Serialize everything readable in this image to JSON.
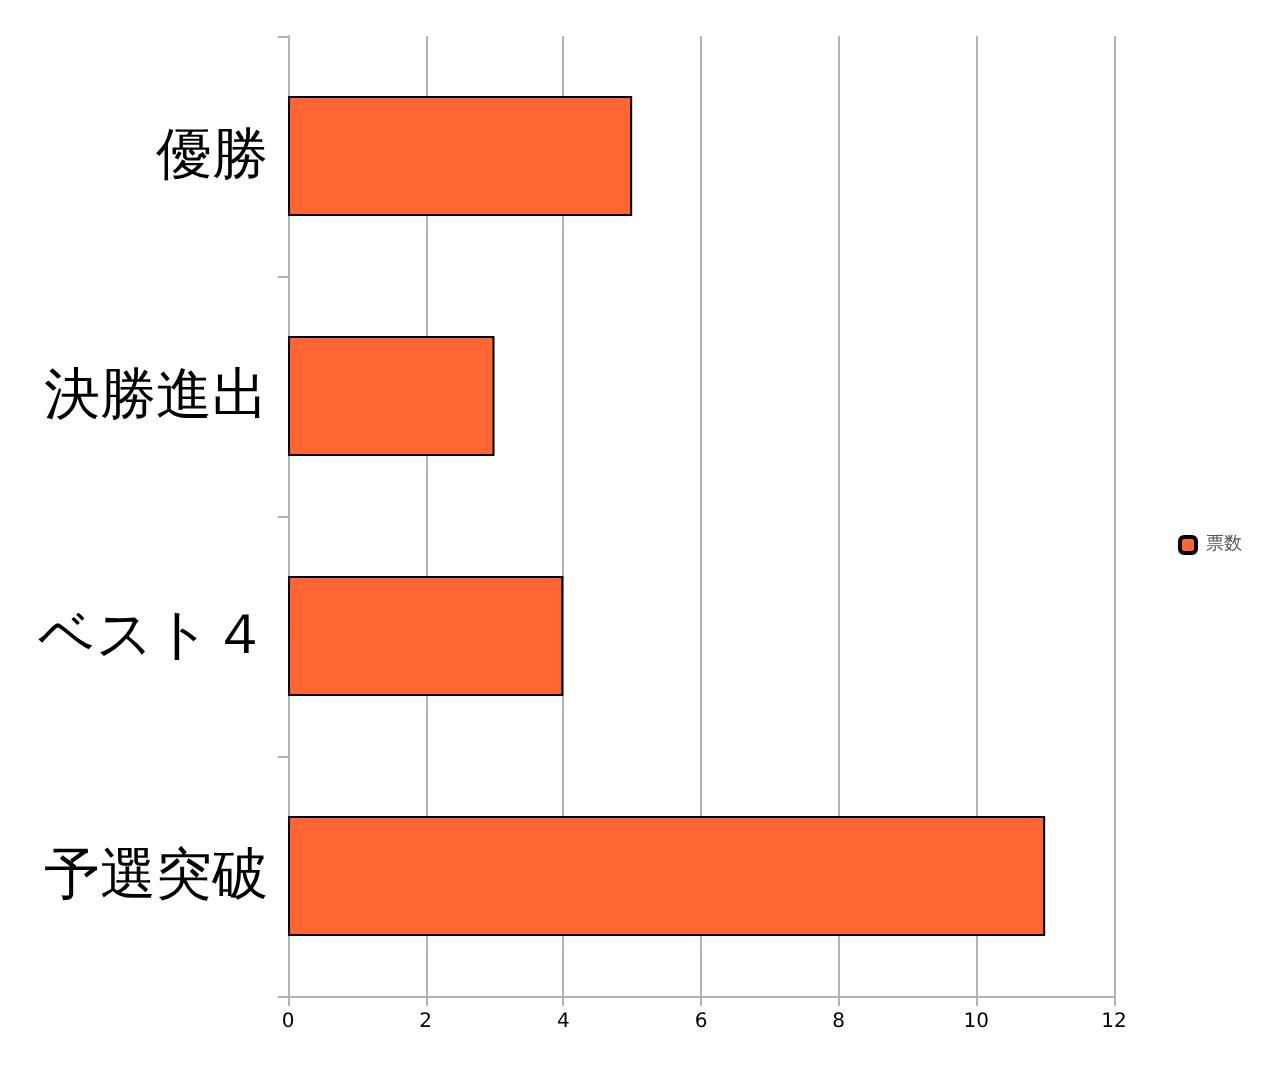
{
  "chart_data": {
    "type": "bar",
    "orientation": "horizontal",
    "categories": [
      "優勝",
      "決勝進出",
      "ベスト４",
      "予選突破"
    ],
    "series": [
      {
        "name": "票数",
        "color": "#ff6633",
        "values": [
          5,
          3,
          4,
          11
        ]
      }
    ],
    "xlim": [
      0,
      12
    ],
    "xticks": [
      0,
      2,
      4,
      6,
      8,
      10,
      12
    ],
    "grid": "x",
    "legend": "right"
  }
}
